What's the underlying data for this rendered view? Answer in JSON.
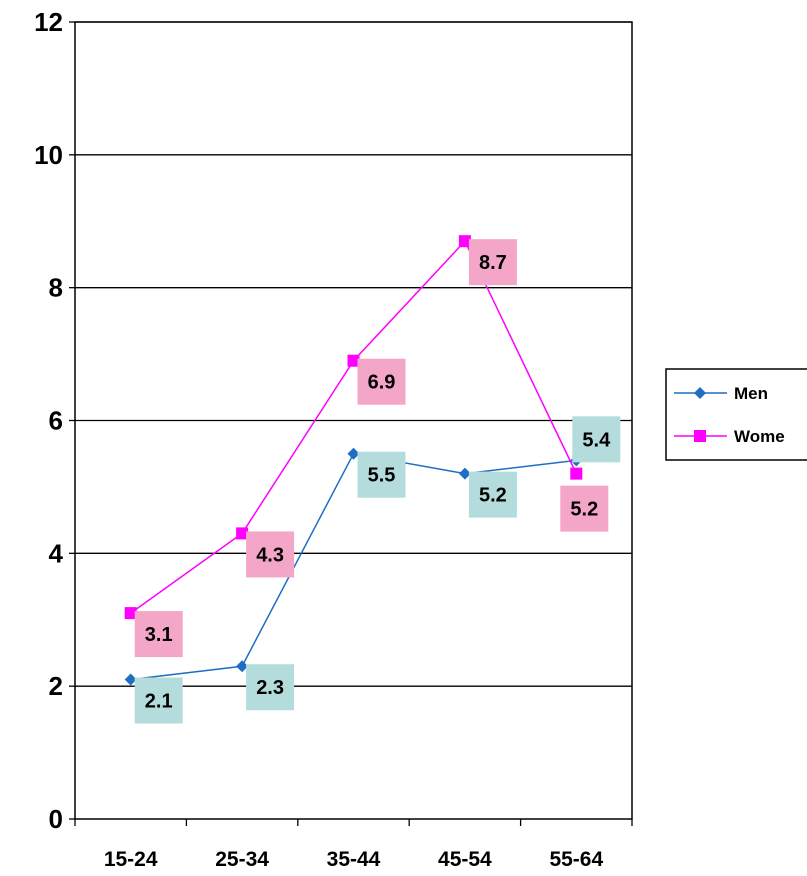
{
  "chart_data": {
    "type": "line",
    "categories": [
      "15-24",
      "25-34",
      "35-44",
      "45-54",
      "55-64"
    ],
    "ylim": [
      0,
      12
    ],
    "yticks": [
      0,
      2,
      4,
      6,
      8,
      10,
      12
    ],
    "grid": true,
    "legend_position": "right",
    "series": [
      {
        "name": "Men",
        "values": [
          2.1,
          2.3,
          5.5,
          5.2,
          5.4
        ],
        "color": "#1f6ec2",
        "marker": "diamond",
        "label_bg": "#b4dcdc",
        "label_side": [
          "right",
          "right",
          "right",
          "right",
          "right-above"
        ]
      },
      {
        "name": "Wome",
        "values": [
          3.1,
          4.3,
          6.9,
          8.7,
          5.2
        ],
        "color": "#ff00ff",
        "marker": "square",
        "label_bg": "#f4a6c8",
        "label_side": [
          "right",
          "right",
          "right",
          "right",
          "below"
        ]
      }
    ]
  }
}
